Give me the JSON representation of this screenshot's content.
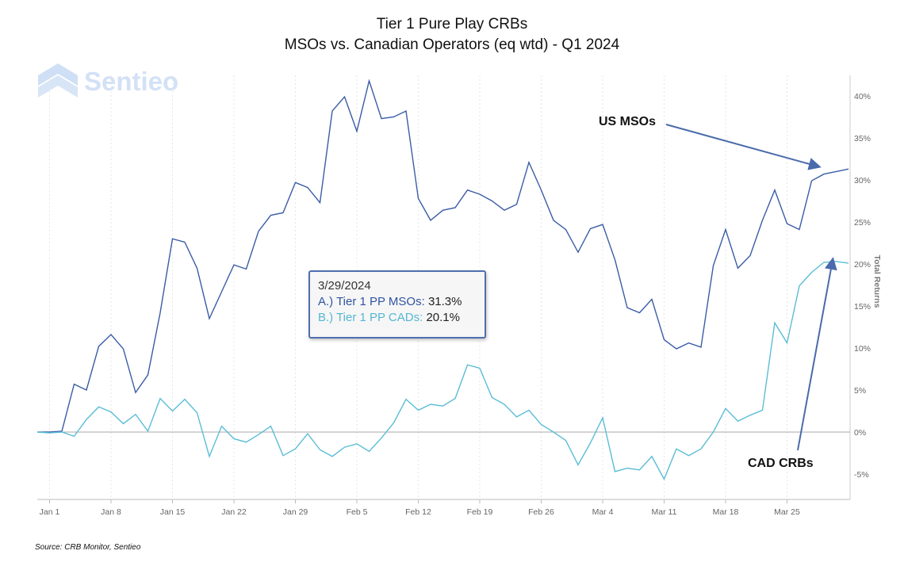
{
  "chart_data": {
    "type": "line",
    "title": "Tier 1 Pure Play CRBs",
    "subtitle": "MSOs vs. Canadian Operators (eq wtd) - Q1 2024",
    "ylabel": "Total Returns",
    "ylim": [
      -8,
      43
    ],
    "y_ticks": [
      "-5%",
      "0%",
      "5%",
      "10%",
      "15%",
      "20%",
      "25%",
      "30%",
      "35%",
      "40%"
    ],
    "y_tick_values": [
      -5,
      0,
      5,
      10,
      15,
      20,
      25,
      30,
      35,
      40
    ],
    "x_tick_labels": [
      "Jan 1",
      "Jan 8",
      "Jan 15",
      "Jan 22",
      "Jan 29",
      "Feb 5",
      "Feb 12",
      "Feb 19",
      "Feb 26",
      "Mar 4",
      "Mar 11",
      "Mar 18",
      "Mar 25"
    ],
    "x_tick_index": [
      1,
      6,
      11,
      16,
      21,
      26,
      31,
      36,
      41,
      46,
      51,
      56,
      61
    ],
    "x_description": "trading days, Dec 29 2023 to Mar 29 2024",
    "series": [
      {
        "name": "Tier 1 PP MSOs",
        "color": "#3a5ca6",
        "values": [
          0,
          0,
          0.1,
          5.7,
          5.0,
          10.2,
          11.6,
          9.9,
          4.7,
          6.8,
          14.2,
          23.0,
          22.6,
          19.5,
          13.5,
          16.7,
          19.9,
          19.4,
          23.9,
          25.8,
          26.1,
          29.7,
          29.1,
          27.3,
          38.2,
          39.9,
          35.8,
          41.8,
          37.3,
          37.5,
          38.2,
          27.8,
          25.2,
          26.4,
          26.7,
          28.8,
          28.3,
          27.5,
          26.4,
          27.1,
          32.1,
          28.8,
          25.2,
          24.1,
          21.4,
          24.2,
          24.7,
          20.5,
          14.8,
          14.2,
          15.8,
          11.0,
          9.9,
          10.6,
          10.1,
          19.8,
          24.1,
          19.5,
          21.0,
          25.2,
          28.8,
          24.8,
          24.1,
          29.9,
          30.7,
          31.0,
          31.3
        ]
      },
      {
        "name": "Tier 1 PP CADs",
        "color": "#5bbdd6",
        "values": [
          0,
          -0.1,
          0,
          -0.5,
          1.5,
          3.0,
          2.4,
          1.0,
          2.1,
          0.1,
          4.0,
          2.5,
          3.9,
          2.3,
          -2.9,
          0.7,
          -0.8,
          -1.2,
          -0.3,
          0.7,
          -2.8,
          -2.0,
          -0.2,
          -2.1,
          -2.9,
          -1.8,
          -1.4,
          -2.3,
          -0.7,
          1.1,
          3.9,
          2.6,
          3.3,
          3.1,
          4.0,
          8.0,
          7.6,
          4.1,
          3.3,
          1.8,
          2.6,
          0.9,
          0.0,
          -1.0,
          -3.9,
          -1.3,
          1.7,
          -4.7,
          -4.3,
          -4.5,
          -2.9,
          -5.6,
          -2.0,
          -2.8,
          -2.0,
          0.0,
          2.8,
          1.3,
          2.0,
          2.6,
          13.0,
          10.6,
          17.4,
          19.0,
          20.2,
          20.3,
          20.1
        ]
      }
    ],
    "annotations": [
      "US MSOs",
      "CAD CRBs"
    ]
  },
  "tooltip": {
    "date": "3/29/2024",
    "a_label": "A.)  Tier 1 PP MSOs:",
    "a_value": "31.3%",
    "b_label": "B.)  Tier 1 PP CADs:",
    "b_value": "20.1%"
  },
  "logo": "Sentieo",
  "source": "Source: CRB Monitor, Sentieo"
}
